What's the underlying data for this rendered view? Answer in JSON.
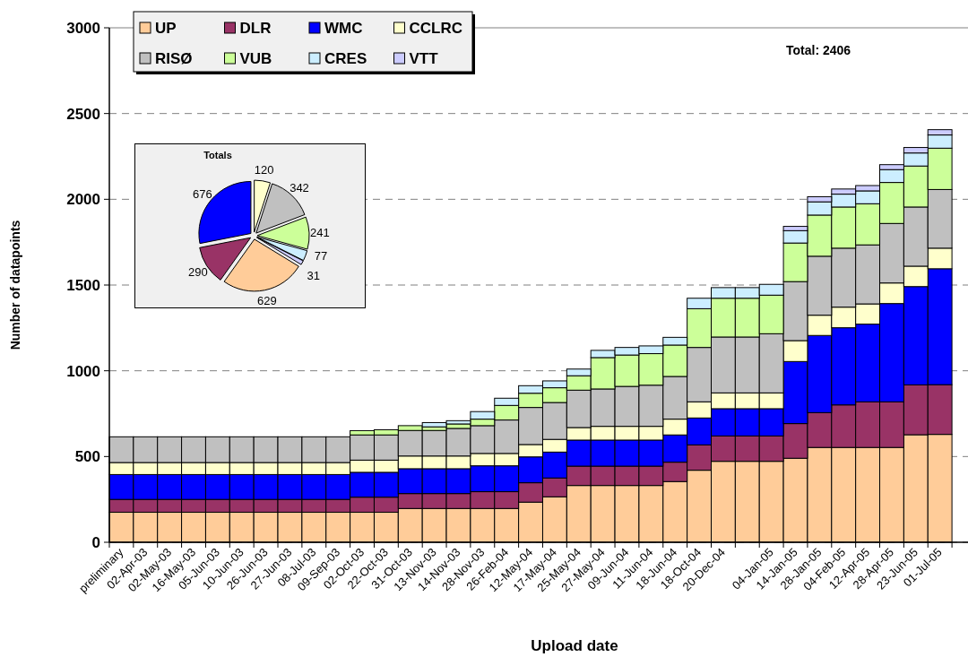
{
  "chart_data": [
    {
      "type": "bar",
      "stacked": true,
      "xlabel": "Upload date",
      "ylabel": "Number of datapoints",
      "annotations": [
        "Total: 2406"
      ],
      "categories": [
        "preliminary",
        "02-Apr-03",
        "02-May-03",
        "16-May-03",
        "05-Jun-03",
        "10-Jun-03",
        "26-Jun-03",
        "27-Jun-03",
        "08-Jul-03",
        "09-Sep-03",
        "02-Oct-03",
        "22-Oct-03",
        "31-Oct-03",
        "13-Nov-03",
        "14-Nov-03",
        "28-Nov-03",
        "26-Feb-04",
        "12-May-04",
        "17-May-04",
        "25-May-04",
        "27-May-04",
        "09-Jun-04",
        "11-Jun-04",
        "18-Jun-04",
        "18-Oct-04",
        "20-Dec-04",
        null,
        "04-Jan-05",
        "14-Jan-05",
        "28-Jan-05",
        "04-Feb-05",
        "12-Apr-05",
        "28-Apr-05",
        "23-Jun-05",
        "01-Jul-05"
      ],
      "series": [
        {
          "name": "UP",
          "color": "#ffcc99",
          "values": [
            175,
            175,
            175,
            175,
            175,
            175,
            175,
            175,
            175,
            175,
            175,
            175,
            197,
            197,
            197,
            197,
            197,
            234,
            265,
            331,
            331,
            331,
            331,
            354,
            420,
            472,
            472,
            472,
            490,
            553,
            553,
            553,
            553,
            627,
            629
          ]
        },
        {
          "name": "DLR",
          "color": "#993366",
          "values": [
            75,
            75,
            75,
            75,
            75,
            75,
            75,
            75,
            75,
            75,
            88,
            88,
            87,
            87,
            87,
            98,
            98,
            113,
            110,
            113,
            113,
            113,
            113,
            113,
            148,
            148,
            148,
            148,
            202,
            203,
            248,
            266,
            266,
            291,
            290
          ]
        },
        {
          "name": "WMC",
          "color": "#0000ff",
          "values": [
            145,
            145,
            145,
            145,
            145,
            145,
            145,
            145,
            145,
            145,
            145,
            145,
            145,
            145,
            145,
            151,
            151,
            151,
            151,
            152,
            152,
            152,
            152,
            159,
            157,
            159,
            159,
            159,
            362,
            450,
            450,
            453,
            573,
            573,
            676
          ]
        },
        {
          "name": "CCLRC",
          "color": "#ffffcc",
          "values": [
            70,
            70,
            70,
            70,
            70,
            70,
            70,
            70,
            70,
            70,
            71,
            71,
            74,
            74,
            74,
            72,
            72,
            72,
            74,
            73,
            80,
            80,
            80,
            92,
            94,
            92,
            92,
            92,
            122,
            118,
            120,
            118,
            120,
            119,
            120
          ]
        },
        {
          "name": "RISØ",
          "color": "#c0c0c0",
          "values": [
            150,
            150,
            150,
            150,
            150,
            150,
            150,
            150,
            150,
            150,
            147,
            147,
            149,
            149,
            161,
            162,
            195,
            216,
            215,
            218,
            218,
            233,
            240,
            249,
            317,
            326,
            326,
            345,
            344,
            344,
            344,
            344,
            347,
            345,
            342
          ]
        },
        {
          "name": "VUB",
          "color": "#ccff99",
          "values": [
            0,
            0,
            0,
            0,
            0,
            0,
            0,
            0,
            0,
            0,
            25,
            30,
            28,
            21,
            26,
            38,
            85,
            83,
            86,
            84,
            183,
            183,
            184,
            183,
            226,
            226,
            226,
            225,
            225,
            240,
            240,
            240,
            239,
            239,
            241
          ]
        },
        {
          "name": "CRES",
          "color": "#cceeff",
          "values": [
            0,
            0,
            0,
            0,
            0,
            0,
            0,
            0,
            0,
            0,
            0,
            0,
            0,
            25,
            19,
            44,
            42,
            44,
            40,
            39,
            42,
            44,
            45,
            45,
            61,
            62,
            62,
            63,
            72,
            77,
            75,
            75,
            75,
            76,
            77
          ]
        },
        {
          "name": "VTT",
          "color": "#ccccff",
          "values": [
            0,
            0,
            0,
            0,
            0,
            0,
            0,
            0,
            0,
            0,
            0,
            0,
            0,
            0,
            0,
            0,
            0,
            0,
            0,
            0,
            0,
            0,
            0,
            0,
            0,
            0,
            0,
            0,
            25,
            30,
            30,
            31,
            29,
            32,
            31
          ]
        }
      ],
      "ylim": [
        0,
        3000
      ],
      "yticks": [
        0,
        500,
        1000,
        1500,
        2000,
        2500,
        3000
      ],
      "grid": "y",
      "legend": "top left"
    },
    {
      "type": "pie",
      "title": "Totals",
      "categories": [
        null,
        null,
        null,
        null,
        null,
        null,
        null,
        null
      ],
      "values": [
        629,
        290,
        676,
        120,
        342,
        241,
        77,
        31
      ],
      "colors": [
        "#ffcc99",
        "#993366",
        "#0000ff",
        "#ffffcc",
        "#c0c0c0",
        "#ccff99",
        "#cceeff",
        "#ccccff"
      ],
      "data_labels": true
    }
  ]
}
